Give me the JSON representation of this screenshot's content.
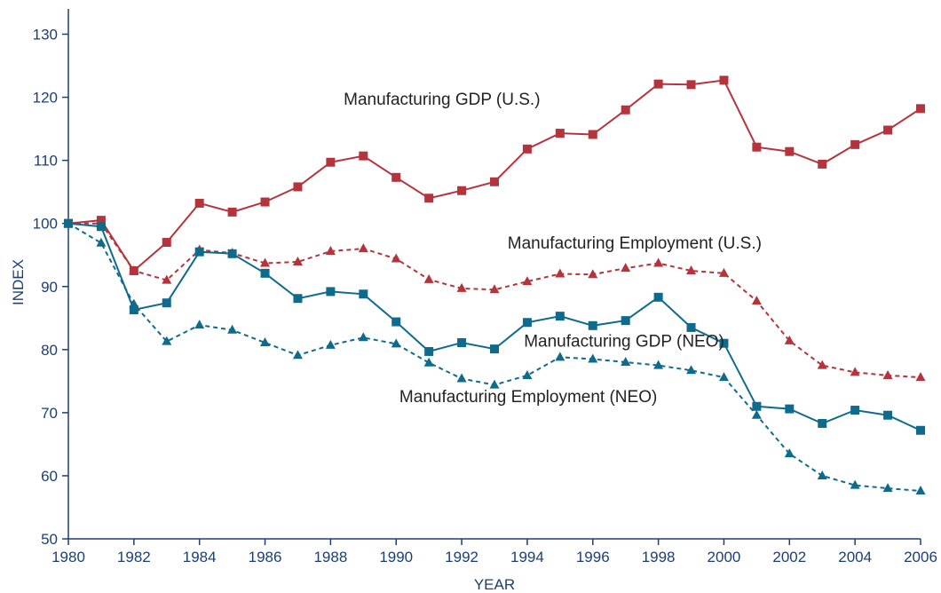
{
  "chart_data": {
    "type": "line",
    "title": "",
    "xlabel": "YEAR",
    "ylabel": "INDEX",
    "xlim": [
      1980,
      2006
    ],
    "ylim": [
      50,
      130
    ],
    "x_ticks": [
      1980,
      1982,
      1984,
      1986,
      1988,
      1990,
      1992,
      1994,
      1996,
      1998,
      2000,
      2002,
      2004,
      2006
    ],
    "y_ticks": [
      50,
      60,
      70,
      80,
      90,
      100,
      110,
      120,
      130
    ],
    "grid": false,
    "legend": "none; series labeled directly on the plot",
    "x": [
      1980,
      1981,
      1982,
      1983,
      1984,
      1985,
      1986,
      1987,
      1988,
      1989,
      1990,
      1991,
      1992,
      1993,
      1994,
      1995,
      1996,
      1997,
      1998,
      1999,
      2000,
      2001,
      2002,
      2003,
      2004,
      2005,
      2006
    ],
    "series": [
      {
        "name": "Manufacturing GDP (U.S.)",
        "color": "#b3343c",
        "line_style": "solid",
        "marker": "square",
        "label_x": 1988.4,
        "label_y": 118.8,
        "values": [
          100.0,
          100.5,
          92.5,
          97.0,
          103.2,
          101.8,
          103.4,
          105.8,
          109.7,
          110.7,
          107.3,
          104.0,
          105.2,
          106.6,
          111.8,
          114.3,
          114.1,
          118.0,
          122.1,
          122.0,
          122.7,
          112.1,
          111.4,
          109.4,
          112.5,
          114.8,
          118.2
        ]
      },
      {
        "name": "Manufacturing Employment (U.S.)",
        "color": "#b3343c",
        "line_style": "dashed",
        "marker": "triangle",
        "label_x": 1993.4,
        "label_y": 96.0,
        "values": [
          100.0,
          100.0,
          92.5,
          91.0,
          95.8,
          95.3,
          93.7,
          93.9,
          95.6,
          96.0,
          94.4,
          91.1,
          89.7,
          89.5,
          90.8,
          92.0,
          91.9,
          92.9,
          93.7,
          92.5,
          92.1,
          87.7,
          81.4,
          77.5,
          76.4,
          75.9,
          75.6
        ]
      },
      {
        "name": "Manufacturing GDP (NEO)",
        "color": "#0f6b8c",
        "line_style": "solid",
        "marker": "square",
        "label_x": 1993.9,
        "label_y": 80.5,
        "values": [
          100.0,
          99.5,
          86.3,
          87.4,
          95.5,
          95.2,
          92.1,
          88.1,
          89.2,
          88.8,
          84.4,
          79.7,
          81.1,
          80.1,
          84.3,
          85.3,
          83.8,
          84.6,
          88.3,
          83.5,
          81.0,
          71.0,
          70.6,
          68.3,
          70.4,
          69.6,
          67.2
        ]
      },
      {
        "name": "Manufacturing Employment (NEO)",
        "color": "#0f6b8c",
        "line_style": "dashed",
        "marker": "triangle",
        "label_x": 1990.1,
        "label_y": 71.7,
        "values": [
          100.0,
          96.9,
          87.2,
          81.3,
          83.9,
          83.1,
          81.1,
          79.1,
          80.7,
          81.9,
          80.9,
          77.9,
          75.4,
          74.4,
          75.9,
          78.8,
          78.5,
          78.0,
          77.5,
          76.7,
          75.6,
          69.6,
          63.5,
          60.0,
          58.5,
          58.0,
          57.6
        ]
      }
    ]
  }
}
